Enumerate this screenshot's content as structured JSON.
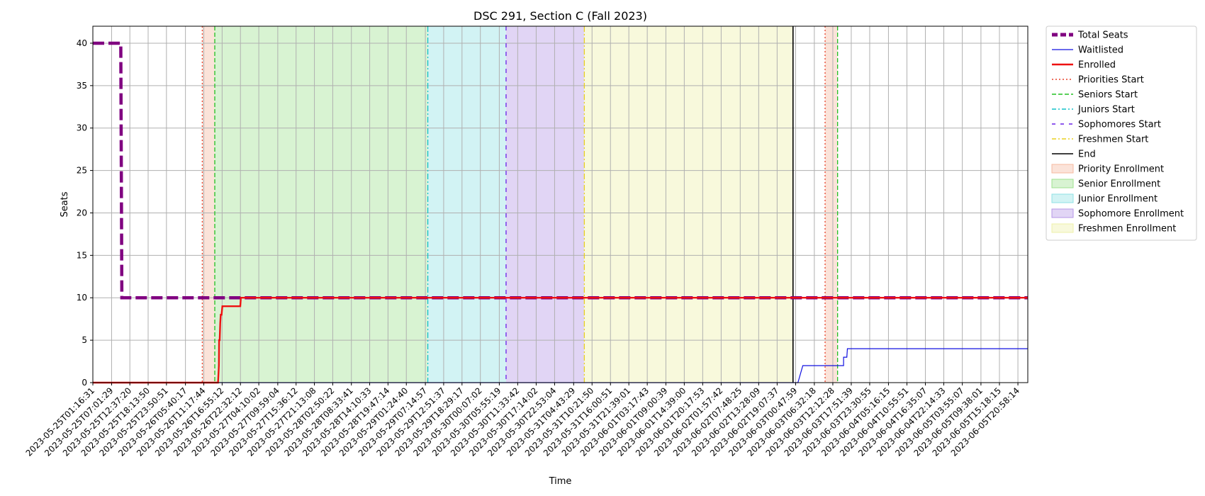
{
  "chart_data": {
    "type": "line",
    "title": "DSC 291, Section C (Fall 2023)",
    "xlabel": "Time",
    "ylabel": "Seats",
    "ylim": [
      0,
      42
    ],
    "yticks": [
      0,
      5,
      10,
      15,
      20,
      25,
      30,
      35,
      40
    ],
    "grid": true,
    "legend_position": "outside-right",
    "x_start": "2023-05-25T01:16:31",
    "x_end": "2023-06-05T23:59:59",
    "xticks": [
      "2023-05-25T01:16:31",
      "2023-05-25T07:01:29",
      "2023-05-25T12:37:20",
      "2023-05-25T18:13:50",
      "2023-05-25T23:50:51",
      "2023-05-26T05:40:17",
      "2023-05-26T11:17:44",
      "2023-05-26T16:55:12",
      "2023-05-26T22:32:12",
      "2023-05-27T04:10:02",
      "2023-05-27T09:59:04",
      "2023-05-27T15:36:12",
      "2023-05-27T21:13:08",
      "2023-05-28T02:50:22",
      "2023-05-28T08:33:41",
      "2023-05-28T14:10:33",
      "2023-05-28T19:47:14",
      "2023-05-29T01:24:40",
      "2023-05-29T07:14:57",
      "2023-05-29T12:51:37",
      "2023-05-29T18:29:17",
      "2023-05-30T00:07:02",
      "2023-05-30T05:55:19",
      "2023-05-30T11:33:42",
      "2023-05-30T17:14:02",
      "2023-05-30T22:53:04",
      "2023-05-31T04:43:29",
      "2023-05-31T10:21:50",
      "2023-05-31T16:00:51",
      "2023-05-31T21:39:01",
      "2023-06-01T03:17:43",
      "2023-06-01T09:00:39",
      "2023-06-01T14:39:00",
      "2023-06-01T20:17:53",
      "2023-06-02T01:57:42",
      "2023-06-02T07:48:25",
      "2023-06-02T13:28:09",
      "2023-06-02T19:07:37",
      "2023-06-03T00:47:59",
      "2023-06-03T06:32:18",
      "2023-06-03T12:12:28",
      "2023-06-03T17:51:39",
      "2023-06-03T23:30:55",
      "2023-06-04T05:16:15",
      "2023-06-04T10:55:51",
      "2023-06-04T16:35:07",
      "2023-06-04T22:14:33",
      "2023-06-05T03:55:07",
      "2023-06-05T09:38:01",
      "2023-06-05T15:18:15",
      "2023-06-05T20:58:14"
    ],
    "spans": [
      {
        "name": "Priority Enrollment",
        "start": "2023-05-26T10:50:00",
        "end": "2023-05-26T14:40:00",
        "color": "#f4b9a0"
      },
      {
        "name": "Senior Enrollment",
        "start": "2023-05-26T14:40:00",
        "end": "2023-05-29T08:00:00",
        "color": "#9ee28e"
      },
      {
        "name": "Junior Enrollment",
        "start": "2023-05-29T08:00:00",
        "end": "2023-05-30T08:00:00",
        "color": "#8fe0e4"
      },
      {
        "name": "Sophomore Enrollment",
        "start": "2023-05-30T08:00:00",
        "end": "2023-05-31T08:00:00",
        "color": "#b596e6"
      },
      {
        "name": "Freshmen Enrollment",
        "start": "2023-05-31T08:00:00",
        "end": "2023-06-02T23:59:59",
        "color": "#eef0a8"
      },
      {
        "name": "Priority Enrollment",
        "start": "2023-06-03T09:50:00",
        "end": "2023-06-03T13:40:00",
        "color": "#f4b9a0"
      }
    ],
    "vlines": [
      {
        "name": "Priorities Start",
        "x": "2023-05-26T10:50:00",
        "color": "#e8402a",
        "dash": "2,3"
      },
      {
        "name": "Seniors Start",
        "x": "2023-05-26T14:40:00",
        "color": "#22c022",
        "dash": "6,3"
      },
      {
        "name": "Juniors Start",
        "x": "2023-05-29T08:00:00",
        "color": "#12c0c8",
        "dash": "8,3,2,3"
      },
      {
        "name": "Sophomores Start",
        "x": "2023-05-30T08:00:00",
        "color": "#6a22e8",
        "dash": "6,6"
      },
      {
        "name": "Freshmen Start",
        "x": "2023-05-31T08:00:00",
        "color": "#e8d020",
        "dash": "8,3,2,3"
      },
      {
        "name": "End",
        "x": "2023-06-02T23:59:59",
        "color": "#000000",
        "dash": ""
      },
      {
        "name": "Priorities Start",
        "x": "2023-06-03T09:50:00",
        "color": "#e8402a",
        "dash": "2,3"
      },
      {
        "name": "Seniors Start",
        "x": "2023-06-03T13:40:00",
        "color": "#22c022",
        "dash": "6,3"
      }
    ],
    "series": [
      {
        "name": "Total Seats",
        "color": "#800080",
        "style": "dashed-thick",
        "points": [
          [
            "2023-05-25T01:16:31",
            40
          ],
          [
            "2023-05-25T09:50:00",
            40
          ],
          [
            "2023-05-25T09:50:00",
            40
          ],
          [
            "2023-05-25T10:10:00",
            10
          ],
          [
            "2023-06-05T23:59:59",
            10
          ]
        ]
      },
      {
        "name": "Waitlisted",
        "color": "#1010e0",
        "style": "solid-thin",
        "points": [
          [
            "2023-05-25T01:16:31",
            0
          ],
          [
            "2023-06-03T01:30:00",
            0
          ],
          [
            "2023-06-03T03:00:00",
            2
          ],
          [
            "2023-06-03T15:30:00",
            2
          ],
          [
            "2023-06-03T15:30:00",
            3
          ],
          [
            "2023-06-03T16:30:00",
            3
          ],
          [
            "2023-06-03T16:40:00",
            4
          ],
          [
            "2023-06-05T23:59:59",
            4
          ]
        ]
      },
      {
        "name": "Enrolled",
        "color": "#ee1111",
        "style": "solid-thick",
        "points": [
          [
            "2023-05-25T01:16:31",
            0
          ],
          [
            "2023-05-26T15:40:00",
            0
          ],
          [
            "2023-05-26T15:55:00",
            2
          ],
          [
            "2023-05-26T16:00:00",
            5
          ],
          [
            "2023-05-26T16:10:00",
            5
          ],
          [
            "2023-05-26T16:20:00",
            7
          ],
          [
            "2023-05-26T16:30:00",
            8
          ],
          [
            "2023-05-26T16:45:00",
            8
          ],
          [
            "2023-05-26T17:00:00",
            9
          ],
          [
            "2023-05-26T22:30:00",
            9
          ],
          [
            "2023-05-26T22:40:00",
            10
          ],
          [
            "2023-06-05T23:59:59",
            10
          ]
        ]
      }
    ],
    "legend": [
      {
        "label": "Total Seats",
        "kind": "line",
        "color": "#800080",
        "style": "dashed-thick"
      },
      {
        "label": "Waitlisted",
        "kind": "line",
        "color": "#1010e0",
        "style": "solid-thin"
      },
      {
        "label": "Enrolled",
        "kind": "line",
        "color": "#ee1111",
        "style": "solid-thick"
      },
      {
        "label": "Priorities Start",
        "kind": "line",
        "color": "#e8402a",
        "style": "dotted"
      },
      {
        "label": "Seniors Start",
        "kind": "line",
        "color": "#22c022",
        "style": "dashed"
      },
      {
        "label": "Juniors Start",
        "kind": "line",
        "color": "#12c0c8",
        "style": "dashdot"
      },
      {
        "label": "Sophomores Start",
        "kind": "line",
        "color": "#6a22e8",
        "style": "loosedash"
      },
      {
        "label": "Freshmen Start",
        "kind": "line",
        "color": "#e8d020",
        "style": "dashdot"
      },
      {
        "label": "End",
        "kind": "line",
        "color": "#000000",
        "style": "solid"
      },
      {
        "label": "Priority Enrollment",
        "kind": "patch",
        "color": "#f4b9a0"
      },
      {
        "label": "Senior Enrollment",
        "kind": "patch",
        "color": "#9ee28e"
      },
      {
        "label": "Junior Enrollment",
        "kind": "patch",
        "color": "#8fe0e4"
      },
      {
        "label": "Sophomore Enrollment",
        "kind": "patch",
        "color": "#b596e6"
      },
      {
        "label": "Freshmen Enrollment",
        "kind": "patch",
        "color": "#eef0a8"
      }
    ]
  }
}
